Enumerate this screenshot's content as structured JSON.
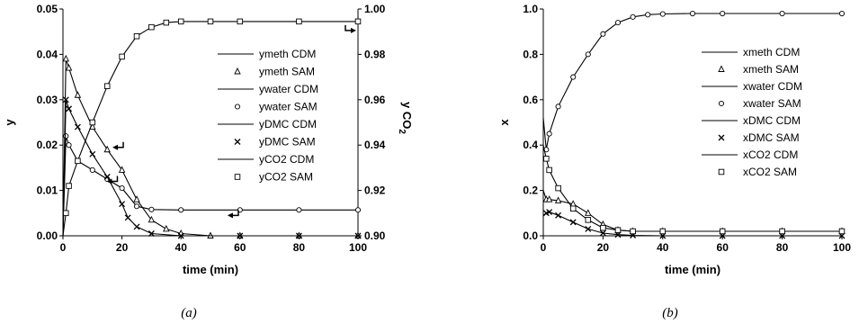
{
  "chart_data": [
    {
      "type": "line",
      "caption": "(a)",
      "xlabel": "time (min)",
      "ylabel": "y",
      "y2label": "y CO",
      "y2label_sub": "2",
      "xlim": [
        0,
        100
      ],
      "ylim": [
        0,
        0.05
      ],
      "y2lim": [
        0.9,
        1.0
      ],
      "xticks": [
        "0",
        "20",
        "40",
        "60",
        "80",
        "100"
      ],
      "yticks": [
        "0.00",
        "0.01",
        "0.02",
        "0.03",
        "0.04",
        "0.05"
      ],
      "y2ticks": [
        "0.90",
        "0.92",
        "0.94",
        "0.96",
        "0.98",
        "1.00"
      ],
      "legend_position": "right",
      "legend": [
        "ymeth CDM",
        "ymeth SAM",
        "ywater CDM",
        "ywater SAM",
        "yDMC CDM",
        "yDMC SAM",
        "yCO2 CDM",
        "yCO2 SAM"
      ],
      "series": [
        {
          "name": "ymeth",
          "axis": "left",
          "marker": "triangle",
          "x": [
            0,
            1,
            2,
            5,
            10,
            15,
            20,
            25,
            30,
            35,
            40,
            50,
            60,
            80,
            100
          ],
          "y": [
            0.0,
            0.039,
            0.037,
            0.031,
            0.024,
            0.019,
            0.0145,
            0.008,
            0.0035,
            0.0015,
            0.0005,
            0.0,
            0.0,
            0.0,
            0.0
          ]
        },
        {
          "name": "ywater",
          "axis": "left",
          "marker": "circle",
          "x": [
            0,
            1,
            2,
            5,
            10,
            15,
            20,
            25,
            30,
            40,
            60,
            80,
            100
          ],
          "y": [
            0.0,
            0.022,
            0.02,
            0.0165,
            0.0145,
            0.0125,
            0.0105,
            0.0065,
            0.0058,
            0.0057,
            0.0057,
            0.0057,
            0.0057
          ]
        },
        {
          "name": "yDMC",
          "axis": "left",
          "marker": "x",
          "x": [
            0,
            1,
            2,
            5,
            10,
            15,
            20,
            22,
            25,
            30,
            40,
            60,
            80,
            100
          ],
          "y": [
            0.0,
            0.03,
            0.028,
            0.024,
            0.018,
            0.013,
            0.007,
            0.004,
            0.002,
            0.0005,
            0.0,
            0.0,
            0.0,
            0.0
          ]
        },
        {
          "name": "yCO2",
          "axis": "right",
          "marker": "square",
          "x": [
            0,
            1,
            2,
            5,
            10,
            15,
            20,
            25,
            30,
            35,
            40,
            50,
            60,
            80,
            100
          ],
          "y": [
            0.9,
            0.91,
            0.922,
            0.933,
            0.95,
            0.966,
            0.979,
            0.988,
            0.992,
            0.994,
            0.9945,
            0.9945,
            0.9945,
            0.9945,
            0.9945
          ]
        }
      ]
    },
    {
      "type": "line",
      "caption": "(b)",
      "xlabel": "time (min)",
      "ylabel": "x",
      "xlim": [
        0,
        100
      ],
      "ylim": [
        0,
        1.0
      ],
      "xticks": [
        "0",
        "20",
        "40",
        "60",
        "80",
        "100"
      ],
      "yticks": [
        "0.0",
        "0.2",
        "0.4",
        "0.6",
        "0.8",
        "1.0"
      ],
      "legend_position": "right",
      "legend": [
        "xmeth CDM",
        "xmeth SAM",
        "xwater CDM",
        "xwater SAM",
        "xDMC CDM",
        "xDMC SAM",
        "xCO2 CDM",
        "xCO2 SAM"
      ],
      "series": [
        {
          "name": "xmeth",
          "marker": "triangle",
          "x": [
            0,
            1,
            2,
            5,
            10,
            15,
            20,
            25,
            30,
            40,
            60,
            80,
            100
          ],
          "y": [
            0.2,
            0.16,
            0.16,
            0.155,
            0.14,
            0.1,
            0.05,
            0.025,
            0.02,
            0.02,
            0.02,
            0.02,
            0.02
          ]
        },
        {
          "name": "xwater",
          "marker": "circle",
          "x": [
            0,
            1,
            2,
            5,
            10,
            15,
            20,
            25,
            30,
            35,
            40,
            50,
            60,
            80,
            100
          ],
          "y": [
            0.52,
            0.38,
            0.45,
            0.57,
            0.7,
            0.8,
            0.89,
            0.94,
            0.965,
            0.975,
            0.978,
            0.98,
            0.98,
            0.98,
            0.98
          ]
        },
        {
          "name": "xDMC",
          "marker": "x",
          "x": [
            0,
            1,
            2,
            5,
            10,
            15,
            20,
            25,
            30,
            40,
            60,
            80,
            100
          ],
          "y": [
            0.09,
            0.1,
            0.105,
            0.09,
            0.06,
            0.03,
            0.012,
            0.005,
            0.002,
            0.0,
            0.0,
            0.0,
            0.0
          ]
        },
        {
          "name": "xCO2",
          "marker": "square",
          "x": [
            0,
            1,
            2,
            5,
            10,
            15,
            20,
            25,
            30,
            40,
            60,
            80,
            100
          ],
          "y": [
            0.4,
            0.34,
            0.29,
            0.21,
            0.12,
            0.07,
            0.035,
            0.025,
            0.02,
            0.02,
            0.02,
            0.02,
            0.02
          ]
        }
      ]
    }
  ]
}
